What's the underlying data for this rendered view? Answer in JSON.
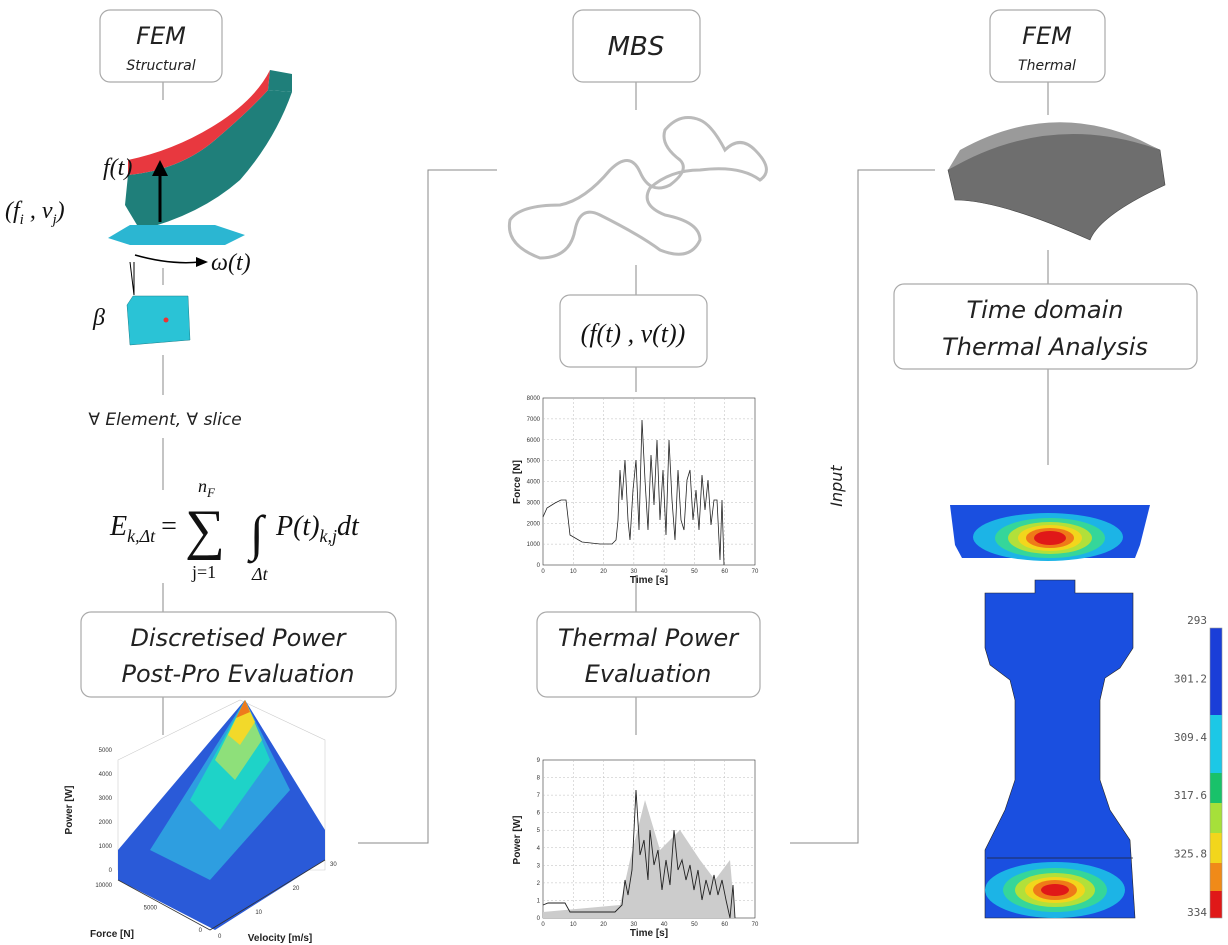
{
  "structural": {
    "title": "FEM",
    "subtitle": "Structural",
    "force": "f(t)",
    "pair": [
      "(f",
      "i",
      " , v",
      "j",
      ")"
    ],
    "omega": "ω(t)",
    "beta": "β",
    "loop_note": "∀ Element, ∀ slice",
    "equation": {
      "lhs": "E",
      "lhs_sub": "k,Δt",
      "equals": "=",
      "sum": "∑",
      "upper": "n",
      "upper_sub": "F",
      "lower": "j=1",
      "integral": "∫",
      "int_lower": "Δt",
      "integrand": "P(t)",
      "integrand_sub": "k,j",
      "dt": "dt"
    },
    "box": [
      "Discretised Power",
      "Post-Pro Evaluation"
    ],
    "surface_plot": {
      "z_label": "Power [W]",
      "x_label": "Force [N]",
      "y_label": "Velocity [m/s]",
      "z_ticks": [
        "0",
        "1000",
        "2000",
        "3000",
        "4000",
        "5000"
      ],
      "x_ticks": [
        "10000",
        "5000",
        "0"
      ],
      "y_ticks": [
        "0",
        "10",
        "20",
        "30"
      ]
    }
  },
  "mbs": {
    "title": "MBS",
    "output": "(f(t) , v(t))",
    "force_plot": {
      "y_label": "Force [N]",
      "x_label": "Time [s]",
      "y_ticks": [
        "0",
        "1000",
        "2000",
        "3000",
        "4000",
        "5000",
        "6000",
        "7000",
        "8000"
      ],
      "x_ticks": [
        "0",
        "10",
        "20",
        "30",
        "40",
        "50",
        "60",
        "70"
      ]
    },
    "box": [
      "Thermal Power",
      "Evaluation"
    ],
    "power_plot": {
      "y_label": "Power [W]",
      "x_label": "Time [s]",
      "y_ticks": [
        "0",
        "1",
        "2",
        "3",
        "4",
        "5",
        "6",
        "7",
        "8",
        "9"
      ],
      "x_ticks": [
        "0",
        "10",
        "20",
        "30",
        "40",
        "50",
        "60",
        "70"
      ]
    }
  },
  "input_label": "Input",
  "thermal": {
    "title": "FEM",
    "subtitle": "Thermal",
    "box": [
      "Time domain",
      "Thermal Analysis"
    ],
    "colorbar": [
      "293",
      "301.2",
      "309.4",
      "317.6",
      "325.8",
      "334"
    ]
  }
}
